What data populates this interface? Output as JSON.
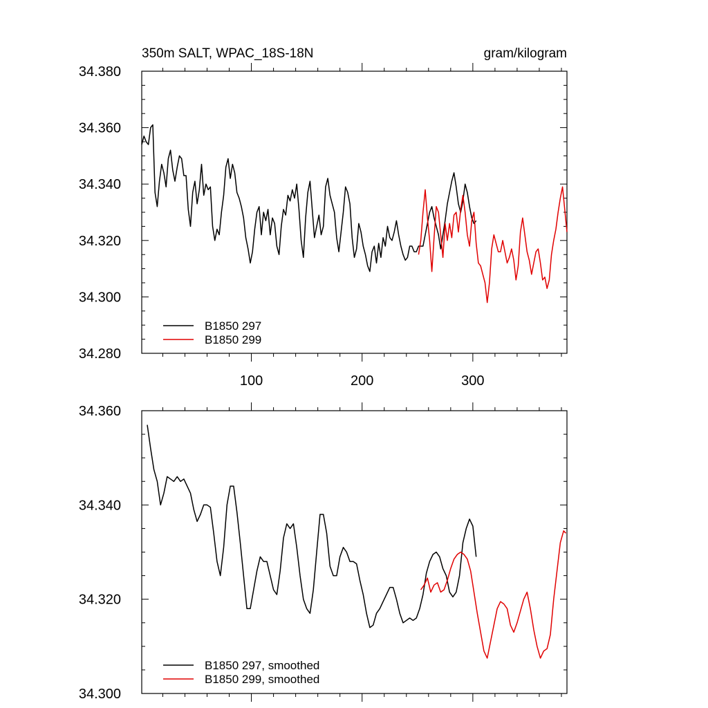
{
  "chart_data": [
    {
      "type": "line",
      "title_left": "350m SALT, WPAC_18S-18N",
      "title_right": "gram/kilogram",
      "xlabel": "",
      "ylabel": "",
      "xlim": [
        1,
        385
      ],
      "ylim": [
        34.28,
        34.38
      ],
      "x_ticks": [
        100,
        200,
        300
      ],
      "x_tick_labels": [
        "100",
        "200",
        "300"
      ],
      "y_ticks": [
        34.28,
        34.3,
        34.32,
        34.34,
        34.36,
        34.38
      ],
      "y_tick_labels": [
        "34.280",
        "34.300",
        "34.320",
        "34.340",
        "34.360",
        "34.380"
      ],
      "grid": false,
      "legend_position": "bottom-left",
      "series": [
        {
          "name": "B1850 297",
          "color": "#000000",
          "x": [
            1,
            3,
            5,
            7,
            9,
            11,
            13,
            15,
            17,
            19,
            21,
            23,
            25,
            27,
            29,
            31,
            33,
            35,
            37,
            39,
            41,
            43,
            45,
            47,
            49,
            51,
            53,
            55,
            57,
            59,
            61,
            63,
            65,
            67,
            69,
            71,
            73,
            75,
            77,
            79,
            81,
            83,
            85,
            87,
            89,
            91,
            93,
            95,
            97,
            99,
            101,
            103,
            105,
            107,
            109,
            111,
            113,
            115,
            117,
            119,
            121,
            123,
            125,
            127,
            129,
            131,
            133,
            135,
            137,
            139,
            141,
            143,
            145,
            147,
            149,
            151,
            153,
            155,
            157,
            159,
            161,
            163,
            165,
            167,
            169,
            171,
            173,
            175,
            177,
            179,
            181,
            183,
            185,
            187,
            189,
            191,
            193,
            195,
            197,
            199,
            201,
            203,
            205,
            207,
            209,
            211,
            213,
            215,
            217,
            219,
            221,
            223,
            225,
            227,
            229,
            231,
            233,
            235,
            237,
            239,
            241,
            243,
            245,
            247,
            249,
            251,
            253,
            255,
            257,
            259,
            261,
            263,
            265,
            267,
            269,
            271,
            273,
            275,
            277,
            279,
            281,
            283,
            285,
            287,
            289,
            291,
            293,
            295,
            297,
            299,
            301,
            303
          ],
          "values": [
            34.354,
            34.357,
            34.355,
            34.354,
            34.36,
            34.361,
            34.337,
            34.332,
            34.341,
            34.347,
            34.344,
            34.339,
            34.349,
            34.352,
            34.345,
            34.341,
            34.346,
            34.35,
            34.349,
            34.343,
            34.343,
            34.331,
            34.325,
            34.337,
            34.341,
            34.333,
            34.338,
            34.347,
            34.336,
            34.34,
            34.338,
            34.339,
            34.325,
            34.32,
            34.324,
            34.322,
            34.33,
            34.336,
            34.346,
            34.349,
            34.342,
            34.347,
            34.344,
            34.337,
            34.335,
            34.332,
            34.328,
            34.321,
            34.317,
            34.312,
            34.316,
            34.324,
            34.33,
            34.332,
            34.322,
            34.33,
            34.327,
            34.331,
            34.322,
            34.328,
            34.326,
            34.318,
            34.315,
            34.325,
            34.331,
            34.329,
            34.336,
            34.334,
            34.338,
            34.335,
            34.34,
            34.331,
            34.32,
            34.314,
            34.328,
            34.337,
            34.341,
            34.331,
            34.321,
            34.325,
            34.329,
            34.322,
            34.325,
            34.339,
            34.342,
            34.336,
            34.333,
            34.33,
            34.321,
            34.316,
            34.323,
            34.33,
            34.339,
            34.337,
            34.333,
            34.321,
            34.314,
            34.317,
            34.326,
            34.323,
            34.318,
            34.315,
            34.311,
            34.309,
            34.316,
            34.318,
            34.312,
            34.319,
            34.314,
            34.321,
            34.318,
            34.325,
            34.321,
            34.32,
            34.323,
            34.327,
            34.322,
            34.318,
            34.315,
            34.313,
            34.314,
            34.318,
            34.318,
            34.316,
            34.316,
            34.318,
            34.318,
            34.318,
            34.322,
            34.326,
            34.33,
            34.332,
            34.328,
            34.325,
            34.322,
            34.317,
            34.322,
            34.327,
            34.333,
            34.337,
            34.341,
            34.344,
            34.339,
            34.333,
            34.33,
            34.334,
            34.34,
            34.337,
            34.332,
            34.328,
            34.326,
            34.327
          ]
        },
        {
          "name": "B1850 299",
          "color": "#e00000",
          "x": [
            251,
            253,
            255,
            257,
            259,
            261,
            263,
            265,
            267,
            269,
            271,
            273,
            275,
            277,
            279,
            281,
            283,
            285,
            287,
            289,
            291,
            293,
            295,
            297,
            299,
            301,
            303,
            305,
            307,
            309,
            311,
            313,
            315,
            317,
            319,
            321,
            323,
            325,
            327,
            329,
            331,
            333,
            335,
            337,
            339,
            341,
            343,
            345,
            347,
            349,
            351,
            353,
            355,
            357,
            359,
            361,
            363,
            365,
            367,
            369,
            371,
            373,
            375,
            377,
            379,
            381,
            383,
            385
          ],
          "values": [
            34.315,
            34.32,
            34.33,
            34.338,
            34.328,
            34.32,
            34.309,
            34.321,
            34.332,
            34.33,
            34.322,
            34.314,
            34.326,
            34.32,
            34.326,
            34.321,
            34.329,
            34.33,
            34.323,
            34.331,
            34.336,
            34.33,
            34.322,
            34.318,
            34.327,
            34.33,
            34.319,
            34.312,
            34.311,
            34.308,
            34.305,
            34.298,
            34.305,
            34.317,
            34.322,
            34.319,
            34.316,
            34.316,
            34.32,
            34.316,
            34.312,
            34.314,
            34.317,
            34.313,
            34.306,
            34.311,
            34.323,
            34.328,
            34.322,
            34.316,
            34.313,
            34.308,
            34.312,
            34.316,
            34.317,
            34.312,
            34.306,
            34.307,
            34.303,
            34.306,
            34.315,
            34.32,
            34.324,
            34.33,
            34.335,
            34.339,
            34.331,
            34.323
          ]
        }
      ]
    },
    {
      "type": "line",
      "xlabel": "",
      "ylabel": "",
      "xlim": [
        1,
        385
      ],
      "ylim": [
        34.3,
        34.36
      ],
      "y_ticks": [
        34.3,
        34.32,
        34.34,
        34.36
      ],
      "y_tick_labels": [
        "34.300",
        "34.320",
        "34.340",
        "34.360"
      ],
      "grid": false,
      "legend_position": "bottom-left",
      "series": [
        {
          "name": "B1850 297, smoothed",
          "color": "#000000",
          "x": [
            6,
            9,
            12,
            15,
            18,
            21,
            24,
            27,
            30,
            33,
            36,
            39,
            42,
            45,
            48,
            51,
            54,
            57,
            60,
            63,
            66,
            69,
            72,
            75,
            78,
            81,
            84,
            87,
            90,
            93,
            96,
            99,
            102,
            105,
            108,
            111,
            114,
            117,
            120,
            123,
            126,
            129,
            132,
            135,
            138,
            141,
            144,
            147,
            150,
            153,
            156,
            159,
            162,
            165,
            168,
            171,
            174,
            177,
            180,
            183,
            186,
            189,
            192,
            195,
            198,
            201,
            204,
            207,
            210,
            213,
            216,
            219,
            222,
            225,
            228,
            231,
            234,
            237,
            240,
            243,
            246,
            249,
            252,
            255,
            258,
            261,
            264,
            267,
            270,
            273,
            276,
            279,
            282,
            285,
            288,
            291,
            294,
            297,
            300,
            303
          ],
          "values": [
            34.357,
            34.352,
            34.3475,
            34.345,
            34.34,
            34.3425,
            34.346,
            34.3455,
            34.345,
            34.346,
            34.345,
            34.3455,
            34.344,
            34.3425,
            34.339,
            34.3365,
            34.338,
            34.34,
            34.34,
            34.3395,
            34.334,
            34.328,
            34.325,
            34.331,
            34.34,
            34.344,
            34.344,
            34.3385,
            34.332,
            34.325,
            34.318,
            34.318,
            34.322,
            34.326,
            34.329,
            34.328,
            34.328,
            34.325,
            34.322,
            34.321,
            34.326,
            34.333,
            34.336,
            34.335,
            34.336,
            34.331,
            34.325,
            34.32,
            34.318,
            34.317,
            34.322,
            34.33,
            34.338,
            34.338,
            34.334,
            34.327,
            34.325,
            34.325,
            34.329,
            34.331,
            34.33,
            34.328,
            34.328,
            34.3275,
            34.324,
            34.321,
            34.317,
            34.314,
            34.3145,
            34.317,
            34.318,
            34.3195,
            34.321,
            34.3225,
            34.3225,
            34.32,
            34.317,
            34.315,
            34.3155,
            34.316,
            34.3155,
            34.316,
            34.318,
            34.321,
            34.3255,
            34.328,
            34.3295,
            34.33,
            34.329,
            34.3265,
            34.325,
            34.3215,
            34.3205,
            34.3215,
            34.325,
            34.332,
            34.335,
            34.337,
            34.3355,
            34.329
          ]
        },
        {
          "name": "B1850 299, smoothed",
          "color": "#e00000",
          "x": [
            253,
            256,
            259,
            262,
            265,
            268,
            271,
            274,
            277,
            280,
            283,
            286,
            289,
            292,
            295,
            298,
            301,
            304,
            307,
            310,
            313,
            316,
            319,
            322,
            325,
            328,
            331,
            334,
            337,
            340,
            343,
            346,
            349,
            352,
            355,
            358,
            361,
            364,
            367,
            370,
            373,
            376,
            379,
            382,
            384
          ],
          "values": [
            34.322,
            34.323,
            34.3245,
            34.3215,
            34.323,
            34.3235,
            34.3215,
            34.322,
            34.324,
            34.3265,
            34.3285,
            34.3295,
            34.33,
            34.3295,
            34.3285,
            34.326,
            34.3215,
            34.317,
            34.313,
            34.309,
            34.3075,
            34.311,
            34.3145,
            34.318,
            34.3195,
            34.319,
            34.318,
            34.3145,
            34.313,
            34.315,
            34.3175,
            34.32,
            34.3215,
            34.318,
            34.3135,
            34.31,
            34.3075,
            34.309,
            34.3095,
            34.3125,
            34.32,
            34.326,
            34.332,
            34.3345,
            34.334
          ]
        }
      ]
    }
  ]
}
